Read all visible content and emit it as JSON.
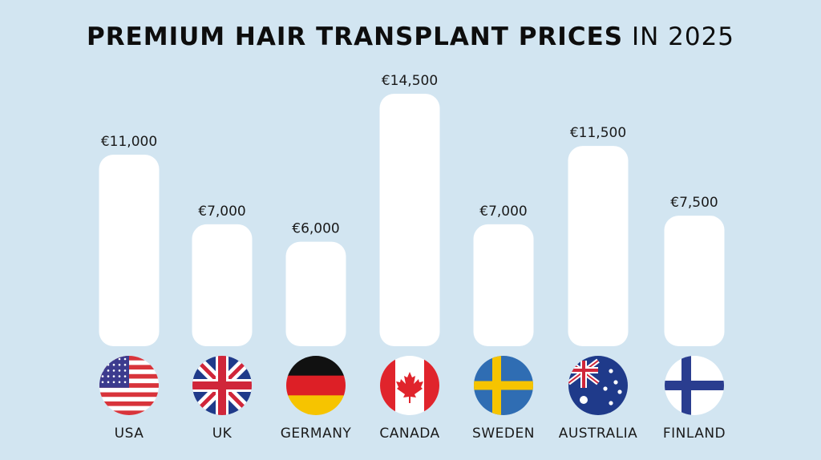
{
  "title": {
    "bold": "PREMIUM HAIR TRANSPLANT PRICES",
    "light": "IN 2025"
  },
  "colors": {
    "background": "#d2e5f1",
    "bar": "#ffffff",
    "text": "#1a1a1a"
  },
  "chart_data": {
    "type": "bar",
    "title": "PREMIUM HAIR TRANSPLANT PRICES IN 2025",
    "categories": [
      "USA",
      "UK",
      "GERMANY",
      "CANADA",
      "SWEDEN",
      "AUSTRALIA",
      "FINLAND"
    ],
    "values": [
      11000,
      7000,
      6000,
      14500,
      7000,
      11500,
      7500
    ],
    "value_labels": [
      "€11,000",
      "€7,000",
      "€6,000",
      "€14,500",
      "€7,000",
      "€11,500",
      "€7,500"
    ],
    "flag_icons": [
      "usa-flag-icon",
      "uk-flag-icon",
      "germany-flag-icon",
      "canada-flag-icon",
      "sweden-flag-icon",
      "australia-flag-icon",
      "finland-flag-icon"
    ],
    "xlabel": "",
    "ylabel": "",
    "grid": false,
    "legend": "none"
  }
}
